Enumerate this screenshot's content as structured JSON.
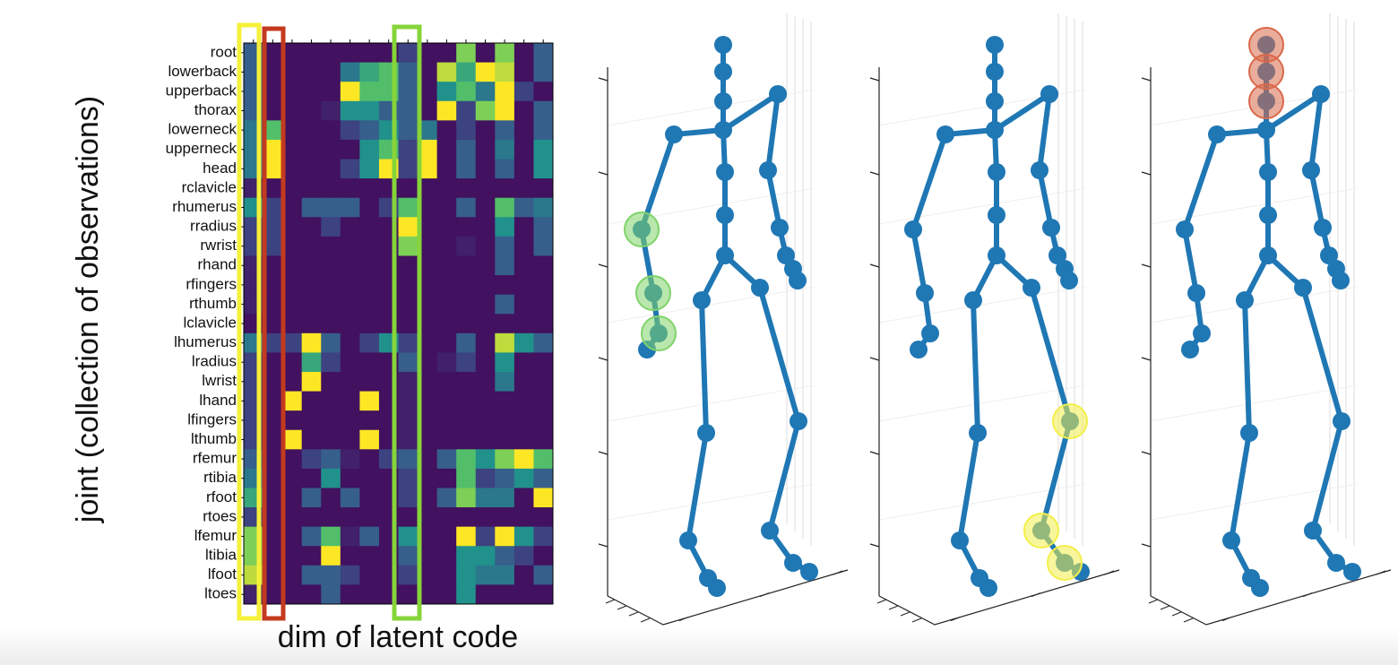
{
  "chart_data": {
    "type": "heatmap",
    "xlabel": "dim of latent code",
    "ylabel": "joint (collection of observations)",
    "colormap": "viridis",
    "clim": [
      0,
      1
    ],
    "categories": [
      "root",
      "lowerback",
      "upperback",
      "thorax",
      "lowerneck",
      "upperneck",
      "head",
      "rclavicle",
      "rhumerus",
      "rradius",
      "rwrist",
      "rhand",
      "rfingers",
      "rthumb",
      "lclavicle",
      "lhumerus",
      "lradius",
      "lwrist",
      "lhand",
      "lfingers",
      "lthumb",
      "rfemur",
      "rtibia",
      "rfoot",
      "rtoes",
      "lfemur",
      "ltibia",
      "lfoot",
      "ltoes"
    ],
    "values": [
      [
        0.3,
        0.05,
        0.05,
        0.05,
        0.05,
        0.05,
        0.05,
        0.05,
        0.2,
        0.05,
        0.05,
        0.8,
        0.05,
        0.8,
        0.05,
        0.3
      ],
      [
        0.3,
        0.05,
        0.05,
        0.05,
        0.05,
        0.4,
        0.6,
        0.7,
        0.3,
        0.05,
        0.9,
        0.6,
        1,
        0.9,
        0.05,
        0.3
      ],
      [
        0.3,
        0.05,
        0.05,
        0.05,
        0.05,
        1,
        0.7,
        0.7,
        0.3,
        0.05,
        0.5,
        0.7,
        0.4,
        1,
        0.2,
        0.05
      ],
      [
        0.3,
        0.05,
        0.05,
        0.05,
        0.1,
        0.5,
        0.5,
        0.3,
        0.3,
        0.05,
        1,
        0.2,
        0.8,
        1,
        0.05,
        0.3
      ],
      [
        0.4,
        0.7,
        0.05,
        0.05,
        0.05,
        0.2,
        0.3,
        0.5,
        0.3,
        0.4,
        0.05,
        0.2,
        0.05,
        0.3,
        0.05,
        0.3
      ],
      [
        0.4,
        1,
        0.05,
        0.05,
        0.05,
        0.05,
        0.5,
        0.7,
        0.2,
        1,
        0.05,
        0.3,
        0.05,
        0.4,
        0.05,
        0.5
      ],
      [
        0.4,
        1,
        0.05,
        0.05,
        0.05,
        0.2,
        0.5,
        1,
        0.2,
        1,
        0.05,
        0.3,
        0.05,
        0.3,
        0.05,
        0.5
      ],
      [
        0.1,
        0.05,
        0.05,
        0.05,
        0.05,
        0.05,
        0.05,
        0.05,
        0.05,
        0.05,
        0.05,
        0.05,
        0.05,
        0.05,
        0.05,
        0.05
      ],
      [
        0.5,
        0.2,
        0.05,
        0.3,
        0.3,
        0.3,
        0.05,
        0.2,
        0.7,
        0.05,
        0.05,
        0.3,
        0.05,
        0.7,
        0.3,
        0.4
      ],
      [
        0.2,
        0.2,
        0.05,
        0.05,
        0.2,
        0.05,
        0.05,
        0.05,
        1,
        0.05,
        0.05,
        0.05,
        0.05,
        0.5,
        0.05,
        0.3
      ],
      [
        0.2,
        0.2,
        0.05,
        0.05,
        0.05,
        0.05,
        0.05,
        0.05,
        0.8,
        0.05,
        0.05,
        0.1,
        0.05,
        0.3,
        0.05,
        0.3
      ],
      [
        0.1,
        0.05,
        0.05,
        0.05,
        0.05,
        0.05,
        0.05,
        0.05,
        0.05,
        0.05,
        0.05,
        0.05,
        0.05,
        0.3,
        0.05,
        0.05
      ],
      [
        0.1,
        0.05,
        0.05,
        0.05,
        0.05,
        0.05,
        0.05,
        0.05,
        0.05,
        0.05,
        0.05,
        0.05,
        0.05,
        0.05,
        0.05,
        0.05
      ],
      [
        0.1,
        0.05,
        0.05,
        0.05,
        0.05,
        0.05,
        0.05,
        0.05,
        0.05,
        0.05,
        0.05,
        0.05,
        0.05,
        0.3,
        0.05,
        0.05
      ],
      [
        0.05,
        0.05,
        0.05,
        0.05,
        0.05,
        0.05,
        0.05,
        0.05,
        0.05,
        0.05,
        0.05,
        0.05,
        0.05,
        0.05,
        0.05,
        0.05
      ],
      [
        0.4,
        0.2,
        0.2,
        1,
        0.3,
        0.05,
        0.2,
        0.5,
        0.2,
        0.05,
        0.05,
        0.3,
        0.05,
        0.9,
        0.5,
        0.3
      ],
      [
        0.2,
        0.05,
        0.05,
        0.6,
        0.2,
        0.05,
        0.05,
        0.05,
        0.3,
        0.05,
        0.1,
        0.2,
        0.05,
        0.5,
        0.05,
        0.05
      ],
      [
        0.2,
        0.05,
        0.05,
        1,
        0.05,
        0.05,
        0.05,
        0.05,
        0.1,
        0.05,
        0.05,
        0.05,
        0.05,
        0.4,
        0.05,
        0.05
      ],
      [
        0.2,
        0.05,
        1,
        0.05,
        0.05,
        0.05,
        1,
        0.05,
        0.1,
        0.05,
        0.05,
        0.05,
        0.05,
        0.05,
        0.05,
        0.05
      ],
      [
        0.2,
        0.05,
        0.05,
        0.05,
        0.05,
        0.05,
        0.05,
        0.05,
        0.1,
        0.05,
        0.05,
        0.05,
        0.05,
        0.05,
        0.05,
        0.05
      ],
      [
        0.2,
        0.05,
        1,
        0.05,
        0.05,
        0.05,
        1,
        0.05,
        0.1,
        0.05,
        0.05,
        0.05,
        0.05,
        0.05,
        0.05,
        0.05
      ],
      [
        0.3,
        0.05,
        0.05,
        0.2,
        0.3,
        0.1,
        0.05,
        0.2,
        0.3,
        0.05,
        0.3,
        0.7,
        0.5,
        0.8,
        1,
        0.7
      ],
      [
        0.4,
        0.05,
        0.05,
        0.05,
        0.5,
        0.05,
        0.05,
        0.05,
        0.2,
        0.05,
        0.05,
        0.7,
        0.2,
        0.3,
        0.5,
        0.3
      ],
      [
        0.6,
        0.05,
        0.05,
        0.3,
        0.05,
        0.3,
        0.05,
        0.05,
        0.2,
        0.05,
        0.3,
        0.8,
        0.4,
        0.4,
        0.05,
        1
      ],
      [
        0.2,
        0.05,
        0.05,
        0.05,
        0.05,
        0.05,
        0.05,
        0.05,
        0.05,
        0.05,
        0.05,
        0.05,
        0.05,
        0.05,
        0.05,
        0.05
      ],
      [
        0.8,
        0.05,
        0.05,
        0.3,
        0.7,
        0.1,
        0.3,
        0.05,
        0.5,
        0.05,
        0.05,
        1,
        0.2,
        1,
        0.5,
        0.2
      ],
      [
        0.8,
        0.05,
        0.05,
        0.05,
        1,
        0.05,
        0.05,
        0.05,
        0.3,
        0.05,
        0.05,
        0.5,
        0.5,
        0.3,
        0.2,
        0.05
      ],
      [
        0.9,
        0.05,
        0.05,
        0.3,
        0.3,
        0.2,
        0.05,
        0.05,
        0.2,
        0.05,
        0.05,
        0.5,
        0.4,
        0.4,
        0.05,
        0.3
      ],
      [
        0.1,
        0.05,
        0.05,
        0.05,
        0.3,
        0.05,
        0.05,
        0.05,
        0.05,
        0.05,
        0.05,
        0.5,
        0.05,
        0.05,
        0.05,
        0.05
      ]
    ]
  }
}
